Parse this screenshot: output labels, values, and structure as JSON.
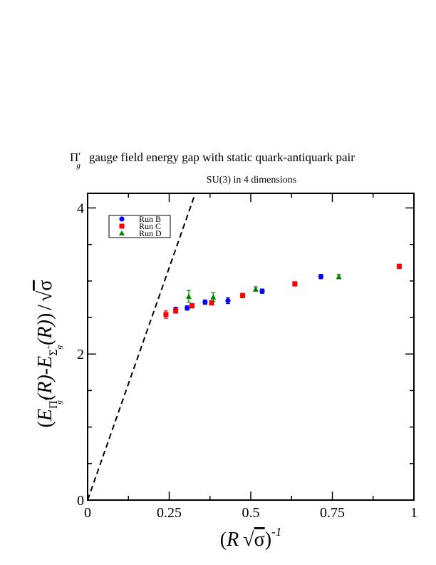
{
  "chart_data": {
    "type": "scatter",
    "title_main": "gauge field energy gap with static quark-antiquark pair",
    "title_symbol": "Π",
    "title_symbol_sub": "g",
    "title_symbol_prime": "′",
    "subtitle": "SU(3) in 4 dimensions",
    "xlabel": {
      "paren_open": "(",
      "R": "R",
      "sqrt_sym": "√",
      "sigma": "σ",
      "paren_close": ")",
      "exp": "-1"
    },
    "ylabel": {
      "open": "(",
      "E": "E",
      "sub1": "Π",
      "sub1_prime": "′",
      "sub1_sub": "g",
      "mid": "(R)-",
      "E2": "E",
      "sub2": "Σ",
      "sub2_sup": "+",
      "sub2_sub": "g",
      "tail": "(R)",
      "close": ")",
      "slash": "/",
      "sqrt_sym": "√",
      "sigma": "σ"
    },
    "xlim": [
      0,
      1
    ],
    "ylim": [
      0,
      4.2
    ],
    "x_ticks": [
      {
        "value": 0,
        "label": "0"
      },
      {
        "value": 0.25,
        "label": "0.25"
      },
      {
        "value": 0.5,
        "label": "0.5"
      },
      {
        "value": 0.75,
        "label": "0.75"
      },
      {
        "value": 1,
        "label": "1"
      }
    ],
    "y_ticks": [
      {
        "value": 0,
        "label": "0"
      },
      {
        "value": 2,
        "label": "2"
      },
      {
        "value": 4,
        "label": "4"
      }
    ],
    "legend_position": "top-left",
    "series": [
      {
        "name": "Run B",
        "color": "#0000ff",
        "marker": "circle",
        "points": [
          {
            "x": 0.27,
            "y": 2.61,
            "err": 0.03
          },
          {
            "x": 0.305,
            "y": 2.63,
            "err": 0.03
          },
          {
            "x": 0.36,
            "y": 2.71,
            "err": 0.03
          },
          {
            "x": 0.43,
            "y": 2.73,
            "err": 0.04
          },
          {
            "x": 0.535,
            "y": 2.86,
            "err": 0.03
          },
          {
            "x": 0.715,
            "y": 3.06,
            "err": 0.03
          }
        ]
      },
      {
        "name": "Run C",
        "color": "#ff0000",
        "marker": "square",
        "points": [
          {
            "x": 0.24,
            "y": 2.54,
            "err": 0.05
          },
          {
            "x": 0.27,
            "y": 2.59,
            "err": 0.03
          },
          {
            "x": 0.32,
            "y": 2.66,
            "err": 0.03
          },
          {
            "x": 0.38,
            "y": 2.7,
            "err": 0.03
          },
          {
            "x": 0.475,
            "y": 2.8,
            "err": 0.03
          },
          {
            "x": 0.635,
            "y": 2.96,
            "err": 0.03
          },
          {
            "x": 0.955,
            "y": 3.2,
            "err": 0.03
          }
        ]
      },
      {
        "name": "Run D",
        "color": "#008000",
        "marker": "triangle",
        "points": [
          {
            "x": 0.31,
            "y": 2.79,
            "err": 0.08
          },
          {
            "x": 0.385,
            "y": 2.78,
            "err": 0.06
          },
          {
            "x": 0.515,
            "y": 2.89,
            "err": 0.03
          },
          {
            "x": 0.77,
            "y": 3.06,
            "err": 0.03
          }
        ]
      }
    ],
    "reference_line": {
      "style": "dashed",
      "color": "#000000",
      "points": [
        {
          "x": 0,
          "y": 0
        },
        {
          "x": 0.33,
          "y": 4.2
        }
      ]
    }
  }
}
